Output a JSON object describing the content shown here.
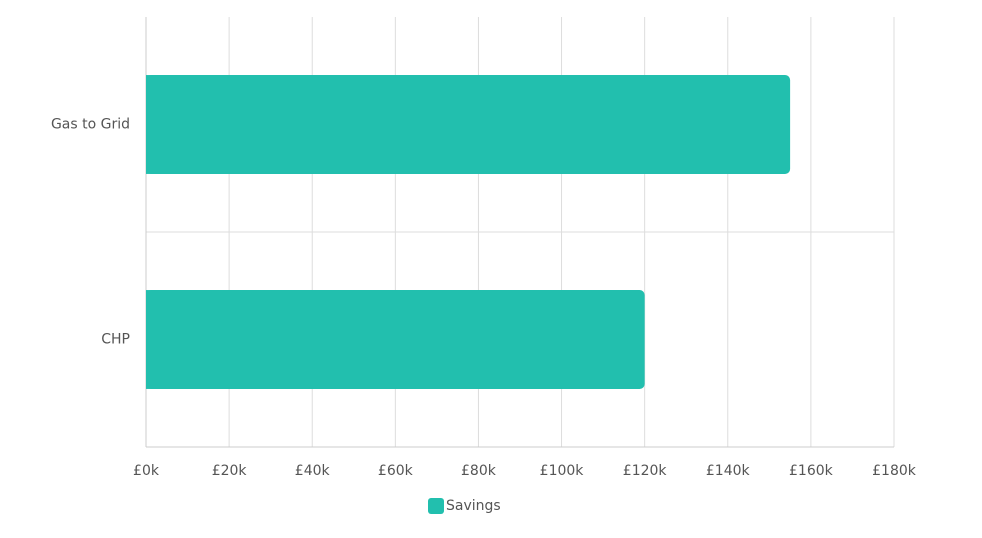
{
  "chart_data": {
    "type": "hbar",
    "categories": [
      "Gas to Grid",
      "CHP"
    ],
    "series": [
      {
        "name": "Savings",
        "color": "#22bfae",
        "values": [
          155000,
          120000
        ]
      }
    ],
    "xlim": [
      0,
      180000
    ],
    "xticks": [
      {
        "value": 0,
        "label": "£0k"
      },
      {
        "value": 20000,
        "label": "£20k"
      },
      {
        "value": 40000,
        "label": "£40k"
      },
      {
        "value": 60000,
        "label": "£60k"
      },
      {
        "value": 80000,
        "label": "£80k"
      },
      {
        "value": 100000,
        "label": "£100k"
      },
      {
        "value": 120000,
        "label": "£120k"
      },
      {
        "value": 140000,
        "label": "£140k"
      },
      {
        "value": 160000,
        "label": "£160k"
      },
      {
        "value": 180000,
        "label": "£180k"
      }
    ],
    "grid": true,
    "legend": "bottom"
  }
}
